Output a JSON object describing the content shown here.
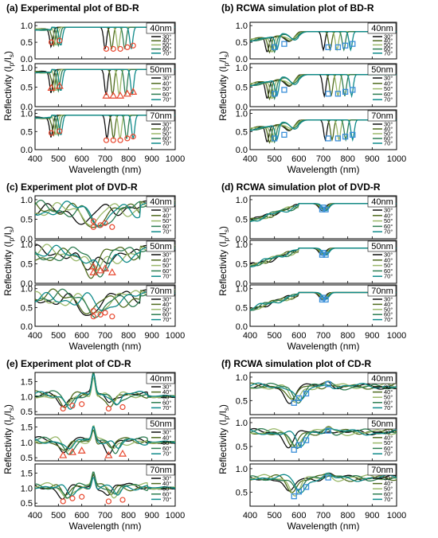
{
  "colors": {
    "series": [
      "#111111",
      "#4f6b1f",
      "#9ab86a",
      "#2e7d52",
      "#0f8a8a"
    ],
    "experiment_marker": "#e8472e",
    "simulation_marker": "#3a8fd9"
  },
  "legend_labels": [
    "30°",
    "40°",
    "50°",
    "60°",
    "70°"
  ],
  "shared_axes": {
    "xlabel": "Wavelength (nm)",
    "ylabel": "Reflectivity (Ip/Is)",
    "x_ticks": [
      "400",
      "500",
      "600",
      "700",
      "800",
      "900",
      "1000"
    ]
  },
  "chart_data": [
    {
      "type": "line",
      "panel": "a",
      "title": "(a) Experimental plot of BD-R",
      "xlim": [
        400,
        1000
      ],
      "ylim": [
        0,
        1.1
      ],
      "y_ticks": [
        "0.0",
        "0.5",
        "1.0"
      ],
      "subplot_tags": [
        "40nm",
        "50nm",
        "70nm"
      ],
      "marker": "circle-red",
      "dips": [
        [
          470,
          0.5
        ],
        [
          505,
          0.55
        ],
        [
          705,
          0.3
        ],
        [
          735,
          0.3
        ],
        [
          765,
          0.3
        ],
        [
          795,
          0.35
        ],
        [
          820,
          0.4
        ]
      ]
    },
    {
      "type": "line",
      "panel": "b",
      "title": "(b) RCWA simulation plot of BD-R",
      "xlim": [
        400,
        1000
      ],
      "ylim": [
        0,
        1.1
      ],
      "y_ticks": [
        "0.0",
        "0.5",
        "1.0"
      ],
      "subplot_tags": [
        "40nm",
        "50nm",
        "70nm"
      ],
      "marker": "square-blue",
      "dips": [
        [
          500,
          0.35
        ],
        [
          540,
          0.45
        ],
        [
          720,
          0.35
        ],
        [
          760,
          0.35
        ],
        [
          790,
          0.4
        ],
        [
          820,
          0.45
        ]
      ]
    },
    {
      "type": "line",
      "panel": "c",
      "title": "(c) Experiment plot of DVD-R",
      "xlim": [
        400,
        1000
      ],
      "ylim": [
        0,
        1.1
      ],
      "y_ticks": [
        "0.0",
        "0.5",
        "1.0"
      ],
      "subplot_tags": [
        "40nm",
        "50nm",
        "70nm"
      ],
      "marker": "circle-red",
      "dips": [
        [
          650,
          0.3
        ],
        [
          680,
          0.35
        ],
        [
          730,
          0.3
        ],
        [
          650,
          0.45
        ],
        [
          700,
          0.4
        ]
      ]
    },
    {
      "type": "line",
      "panel": "d",
      "title": "(d) RCWA simulation plot of DVD-R",
      "xlim": [
        400,
        1000
      ],
      "ylim": [
        0,
        1.1
      ],
      "y_ticks": [
        "0.0",
        "0.5",
        "1.0"
      ],
      "subplot_tags": [
        "40nm",
        "50nm",
        "70nm"
      ],
      "marker": "square-blue",
      "dips": [
        [
          695,
          0.75
        ],
        [
          700,
          0.8
        ],
        [
          710,
          0.75
        ]
      ]
    },
    {
      "type": "line",
      "panel": "e",
      "title": "(e) Experiment plot of CD-R",
      "xlim": [
        400,
        1000
      ],
      "ylim": [
        0.4,
        1.8
      ],
      "y_ticks": [
        "0.5",
        "1.0",
        "1.5"
      ],
      "subplot_tags": [
        "40nm",
        "50nm",
        "70nm"
      ],
      "marker": "circle-red",
      "dips": [
        [
          520,
          0.6
        ],
        [
          560,
          0.7
        ],
        [
          600,
          0.75
        ],
        [
          715,
          0.6
        ],
        [
          775,
          0.65
        ]
      ]
    },
    {
      "type": "line",
      "panel": "f",
      "title": "(f) RCWA simulation plot of CD-R",
      "xlim": [
        400,
        1000
      ],
      "ylim": [
        0.2,
        1.1
      ],
      "y_ticks": [
        "0.5",
        "1.0"
      ],
      "subplot_tags": [
        "40nm",
        "50nm",
        "70nm"
      ],
      "marker": "square-blue",
      "dips": [
        [
          580,
          0.45
        ],
        [
          600,
          0.55
        ],
        [
          630,
          0.65
        ],
        [
          720,
          0.85
        ]
      ]
    }
  ]
}
